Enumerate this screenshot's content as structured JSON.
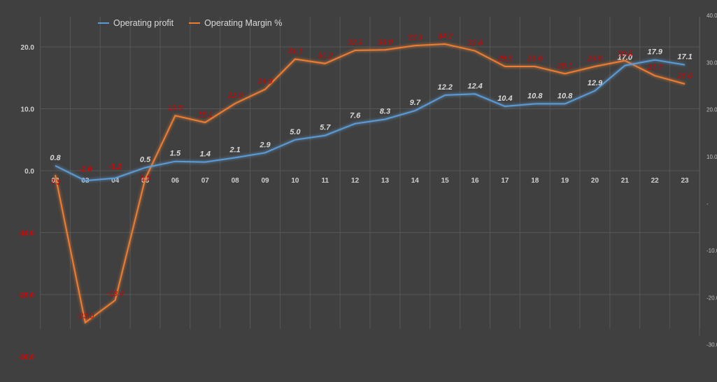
{
  "colors": {
    "background": "#404040",
    "gridline": "#565656",
    "profit_line": "#5b9bd5",
    "margin_line": "#ed7d31",
    "profit_label": "#d9d9d9",
    "negative_label": "#e00000",
    "margin_label": "#d40000",
    "axis_text": "#cfcfcf"
  },
  "legend": {
    "items": [
      {
        "label": "Operating profit",
        "color": "#5b9bd5"
      },
      {
        "label": "Operating Margin %",
        "color": "#ed7d31"
      }
    ]
  },
  "chart_data": {
    "type": "line",
    "title": "",
    "xlabel": "",
    "ylabel": "",
    "categories": [
      "02",
      "03",
      "04",
      "05",
      "06",
      "07",
      "08",
      "09",
      "10",
      "11",
      "12",
      "13",
      "14",
      "15",
      "16",
      "17",
      "18",
      "19",
      "20",
      "21",
      "22",
      "23"
    ],
    "series": [
      {
        "name": "Operating profit",
        "axis": "left",
        "values": [
          0.8,
          -1.6,
          -1.2,
          0.5,
          1.5,
          1.4,
          2.1,
          2.9,
          5.0,
          5.7,
          7.6,
          8.3,
          9.7,
          12.2,
          12.4,
          10.4,
          10.8,
          10.8,
          12.9,
          17.0,
          17.9,
          17.1
        ],
        "labels": [
          "0.8",
          "-1.6",
          "-1.2",
          "0.5",
          "1.5",
          "1.4",
          "2.1",
          "2.9",
          "5.0",
          "5.7",
          "7.6",
          "8.3",
          "9.7",
          "12.2",
          "12.4",
          "10.4",
          "10.8",
          "10.8",
          "12.9",
          "17.0",
          "17.9",
          "17.1"
        ]
      },
      {
        "name": "Operating Margin %",
        "axis": "right",
        "values": [
          7.3,
          -23.0,
          -18.4,
          6.5,
          19.5,
          18.1,
          22.0,
          24.9,
          31.1,
          30.2,
          32.9,
          33.0,
          33.9,
          34.2,
          32.8,
          29.6,
          29.6,
          28.1,
          29.6,
          30.8,
          27.7,
          26.0
        ],
        "labels": [
          "7.3",
          "-23.0",
          "-18.4",
          "6.5",
          "19.5",
          "18.1",
          "22.0",
          "24.9",
          "31.1",
          "30.2",
          "32.9",
          "33.0",
          "33.9",
          "34.2",
          "32.8",
          "29.6",
          "29.6",
          "28.1",
          "29.6",
          "30.8",
          "27.7",
          "26.0"
        ]
      }
    ],
    "left_axis": {
      "ticks": [
        20.0,
        10.0,
        0.0,
        -10.0,
        -20.0,
        -30.0
      ],
      "tick_labels": [
        "20.0",
        "10.0",
        "0.0",
        "-10.0",
        "-20.0",
        "-30.0"
      ],
      "ylim": [
        -30,
        25
      ]
    },
    "right_axis": {
      "ticks": [
        40.0,
        30.0,
        20.0,
        10.0,
        0.0,
        -10.0,
        -20.0,
        -30.0
      ],
      "tick_labels": [
        "40.0",
        "30.0",
        "20.0",
        "10.0",
        "-",
        "-10.0",
        "-20.0",
        "-30.0"
      ],
      "ylim": [
        -30,
        40
      ]
    },
    "grid": true,
    "legend_position": "top-left"
  }
}
